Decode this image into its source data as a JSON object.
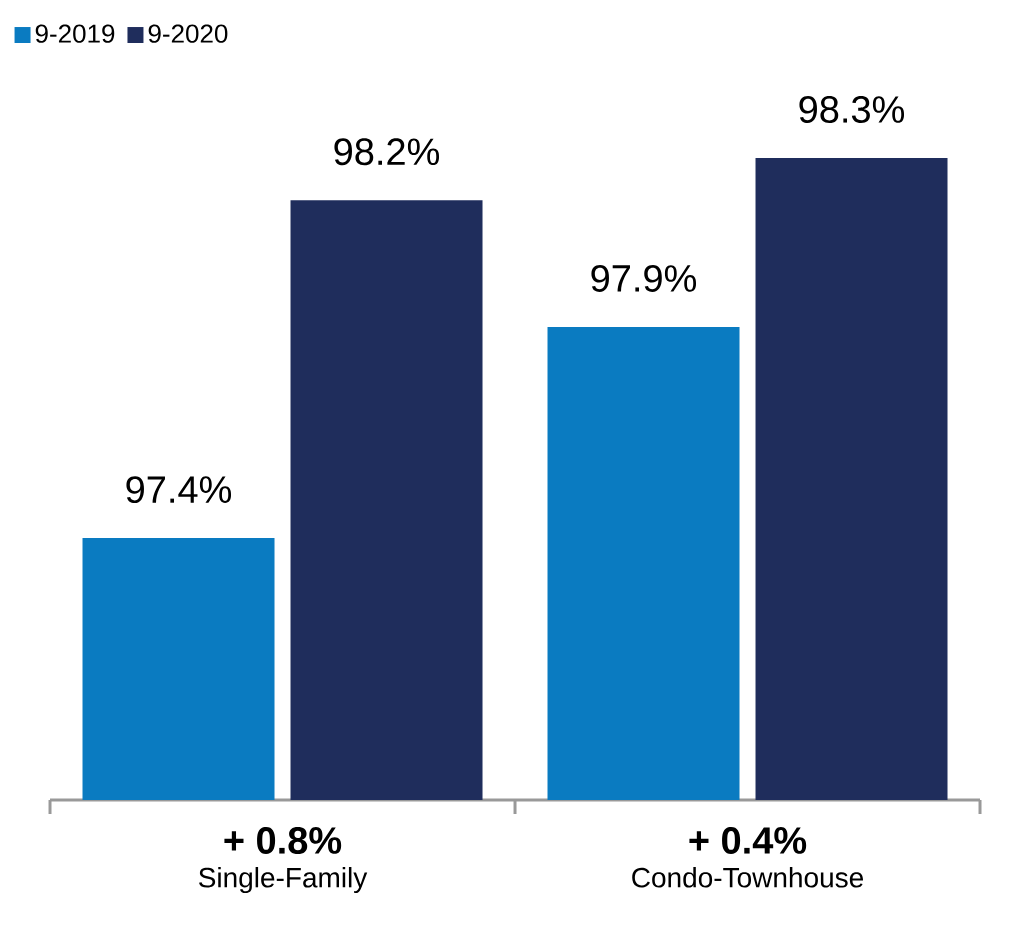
{
  "chart_data": {
    "type": "bar",
    "categories": [
      "Single-Family",
      "Condo-Townhouse"
    ],
    "series": [
      {
        "name": "9-2019",
        "color": "#0a7bc1",
        "values": [
          97.4,
          97.9
        ],
        "value_labels": [
          "97.4%",
          "97.9%"
        ]
      },
      {
        "name": "9-2020",
        "color": "#1f2d5c",
        "values": [
          98.2,
          98.3
        ],
        "value_labels": [
          "98.2%",
          "98.3%"
        ]
      }
    ],
    "ylim": [
      96.78,
      98.3
    ],
    "legend": "top left",
    "grid": false,
    "annotations": [
      "+ 0.8%",
      "+ 0.4%"
    ]
  }
}
